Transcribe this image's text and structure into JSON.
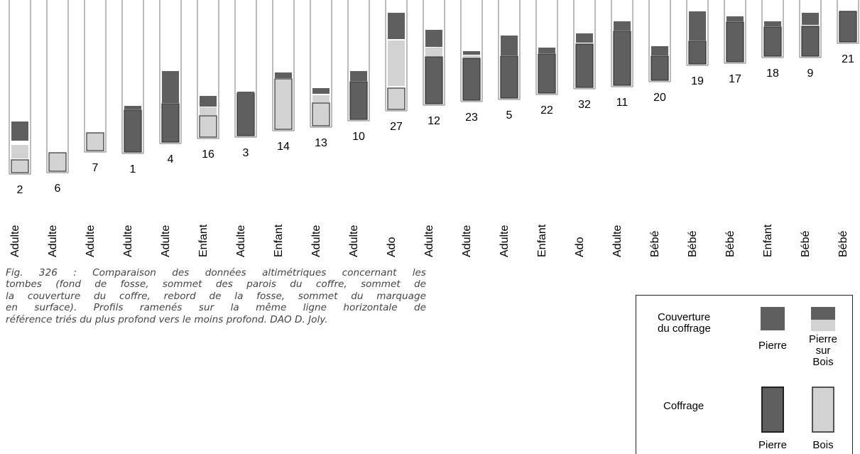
{
  "tombs": [
    {
      "number": "2",
      "age": "Adulte"
    },
    {
      "number": "6",
      "age": "Adulte"
    },
    {
      "number": "7",
      "age": "Adulte"
    },
    {
      "number": "1",
      "age": "Adulte"
    },
    {
      "number": "4",
      "age": "Adulte"
    },
    {
      "number": "16",
      "age": "Enfant"
    },
    {
      "number": "3",
      "age": "Adulte"
    },
    {
      "number": "14",
      "age": "Enfant"
    },
    {
      "number": "13",
      "age": "Adulte"
    },
    {
      "number": "10",
      "age": "Adulte"
    },
    {
      "number": "27",
      "age": "Ado"
    },
    {
      "number": "12",
      "age": "Adulte"
    },
    {
      "number": "23",
      "age": "Adulte"
    },
    {
      "number": "5",
      "age": "Adulte"
    },
    {
      "number": "22",
      "age": "Enfant"
    },
    {
      "number": "32",
      "age": "Ado"
    },
    {
      "number": "11",
      "age": "Adulte"
    },
    {
      "number": "20",
      "age": "Bébé"
    },
    {
      "number": "19",
      "age": "Bébé"
    },
    {
      "number": "17",
      "age": "Bébé"
    },
    {
      "number": "18",
      "age": "Enfant"
    },
    {
      "number": "9",
      "age": "Bébé"
    },
    {
      "number": "21",
      "age": "Bébé"
    }
  ],
  "caption": [
    "Fig. 326 : Comparaison des données altimétriques concernant les",
    "tombes (fond de fosse, sommet des parois du coffre, sommet de",
    "la couverture du coffre, rebord de la fosse, sommet du marquage",
    "en surface). Profils ramenés sur la même ligne horizontale de",
    "référence triés du plus profond vers le moins profond. DAO D. Joly."
  ],
  "legend": {
    "cover_title": [
      "Couverture",
      "du coffrage"
    ],
    "cover_items": [
      [
        "Pierre"
      ],
      [
        "Pierre",
        "sur",
        "Bois"
      ]
    ],
    "coffer_title": [
      "Coffrage"
    ],
    "coffer_items": [
      [
        "Pierre"
      ],
      [
        "Bois"
      ]
    ]
  }
}
